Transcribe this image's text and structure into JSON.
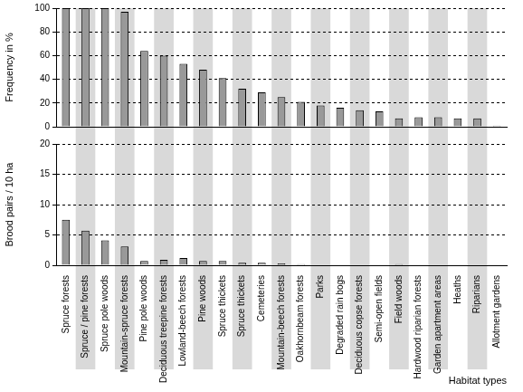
{
  "chart_data": [
    {
      "type": "bar",
      "y_label": "Frequency in %",
      "categories": [
        "Spruce forests",
        "Spruce / pine forests",
        "Spruce pole woods",
        "Mountain-spruce forests",
        "Pine pole woods",
        "Deciduous treepine forests",
        "Lowland-beech forests",
        "Pine woods",
        "Spruce thickets",
        "Spruce thickets",
        "Cemeteries",
        "Mountain-beech forests",
        "Oakhornbeam forests",
        "Parks",
        "Degraded rain bogs",
        "Deciduous copse forests",
        "Semi-open fields",
        "Field woods",
        "Hardwood riparian forests",
        "Garden apartment areas",
        "Heaths",
        "Riparians",
        "Allotment gardens"
      ],
      "values": [
        100,
        100,
        100,
        97,
        64,
        60,
        53,
        48,
        41,
        32,
        29,
        25,
        21,
        18,
        16,
        14,
        13,
        7,
        8,
        8,
        7,
        7,
        1
      ],
      "color": "#999999",
      "ylim": [
        0,
        100
      ],
      "yticks": [
        0,
        20,
        40,
        60,
        80,
        100
      ],
      "grid": true,
      "tick_labels": "y"
    },
    {
      "type": "bar",
      "x_label": "Habitat types",
      "y_label": "Brood pairs / 10 ha",
      "categories": [
        "Spruce forests",
        "Spruce / pine forests",
        "Spruce pole woods",
        "Mountain-spruce forests",
        "Pine pole woods",
        "Deciduous treepine forests",
        "Lowland-beech forests",
        "Pine woods",
        "Spruce thickets",
        "Spruce thickets",
        "Cemeteries",
        "Mountain-beech forests",
        "Oakhornbeam forests",
        "Parks",
        "Degraded rain bogs",
        "Deciduous copse forests",
        "Semi-open fields",
        "Field woods",
        "Hardwood riparian forests",
        "Garden apartment areas",
        "Heaths",
        "Riparians",
        "Allotment gardens"
      ],
      "values": [
        7.5,
        5.7,
        4.1,
        3.1,
        0.7,
        0.9,
        1.2,
        0.7,
        0.7,
        0.4,
        0.4,
        0.3,
        0.2,
        0,
        0,
        0,
        0,
        0.2,
        0,
        0,
        0,
        0,
        0
      ],
      "color": "#999999",
      "ylim": [
        0,
        20
      ],
      "yticks": [
        0,
        5,
        10,
        15,
        20
      ],
      "grid": true
    }
  ]
}
